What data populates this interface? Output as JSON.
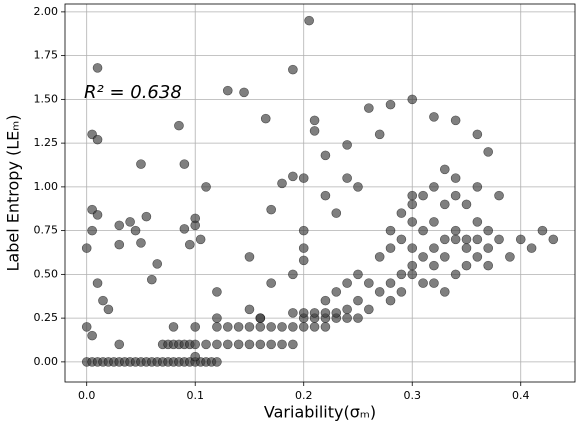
{
  "chart_data": {
    "type": "scatter",
    "xlabel": "Variability(σₘ)",
    "ylabel": "Label Entropy (LEₘ)",
    "annotation": "R² = 0.638",
    "color": "#3a3a3a",
    "grid": true,
    "xlim": [
      -0.02,
      0.45
    ],
    "ylim": [
      -0.115,
      2.045
    ],
    "xticks": [
      {
        "value": 0,
        "label": "0.0"
      },
      0.1,
      0.2,
      0.3,
      0.4
    ],
    "yticks": [
      {
        "value": 0,
        "label": "0.00"
      },
      0.25,
      {
        "value": 0.5,
        "label": "0.50"
      },
      0.75,
      {
        "value": 1,
        "label": "1.00"
      },
      1.25,
      {
        "value": 1.5,
        "label": "1.50"
      },
      1.75,
      {
        "value": 2,
        "label": "2.00"
      }
    ],
    "x": [
      0,
      0.005,
      0.01,
      0.015,
      0.02,
      0.025,
      0.03,
      0.035,
      0.04,
      0.045,
      0.05,
      0.055,
      0.06,
      0.065,
      0.07,
      0.075,
      0.08,
      0.085,
      0.09,
      0.095,
      0.1,
      0.105,
      0.11,
      0.115,
      0.12,
      0.03,
      0.07,
      0.075,
      0.08,
      0.085,
      0.09,
      0.095,
      0.1,
      0.11,
      0.12,
      0.13,
      0.14,
      0.15,
      0.16,
      0.17,
      0.18,
      0.19,
      0.08,
      0.1,
      0.12,
      0.13,
      0.14,
      0.15,
      0.16,
      0.17,
      0.18,
      0.19,
      0.2,
      0.21,
      0.22,
      0.12,
      0.16,
      0.2,
      0.21,
      0.22,
      0.23,
      0.24,
      0.25,
      0.19,
      0.2,
      0.21,
      0.22,
      0.23,
      0.24,
      0.25,
      0.26,
      0.27,
      0.28,
      0.29,
      0.3,
      0.3,
      0.31,
      0.31,
      0.32,
      0.32,
      0.33,
      0.33,
      0.34,
      0.34,
      0.35,
      0.35,
      0.36,
      0.36,
      0.37,
      0.37,
      0.38,
      0.39,
      0.4,
      0.41,
      0.42,
      0.43,
      0.26,
      0.28,
      0.29,
      0.3,
      0.31,
      0.32,
      0.33,
      0.34,
      0.3,
      0.31,
      0.32,
      0.3,
      0.29,
      0.28,
      0.27,
      0.32,
      0.33,
      0.34,
      0.35,
      0.36,
      0.37,
      0.25,
      0.23,
      0.22,
      0.24,
      0.35,
      0.36,
      0.34,
      0.33,
      0.3,
      0.29,
      0.28,
      0.01,
      0.005,
      0.01,
      0.005,
      0.01,
      0,
      0.005,
      0.01,
      0.015,
      0,
      0.005,
      0.02,
      0.03,
      0.03,
      0.04,
      0.045,
      0.05,
      0.05,
      0.055,
      0.06,
      0.065,
      0.085,
      0.09,
      0.09,
      0.095,
      0.1,
      0.1,
      0.105,
      0.11,
      0.12,
      0.13,
      0.145,
      0.15,
      0.15,
      0.165,
      0.17,
      0.18,
      0.19,
      0.19,
      0.2,
      0.205,
      0.2,
      0.2,
      0.19,
      0.21,
      0.21,
      0.22,
      0.22,
      0.23,
      0.24,
      0.24,
      0.25,
      0.26,
      0.27,
      0.28,
      0.3,
      0.32,
      0.34,
      0.36,
      0.37,
      0.38,
      0.17,
      0.16,
      0.1,
      0.2
    ],
    "y": [
      0,
      0,
      0,
      0,
      0,
      0,
      0,
      0,
      0,
      0,
      0,
      0,
      0,
      0,
      0,
      0,
      0,
      0,
      0,
      0,
      0,
      0,
      0,
      0,
      0,
      0.1,
      0.1,
      0.1,
      0.1,
      0.1,
      0.1,
      0.1,
      0.1,
      0.1,
      0.1,
      0.1,
      0.1,
      0.1,
      0.1,
      0.1,
      0.1,
      0.1,
      0.2,
      0.2,
      0.2,
      0.2,
      0.2,
      0.2,
      0.2,
      0.2,
      0.2,
      0.2,
      0.2,
      0.2,
      0.2,
      0.25,
      0.25,
      0.25,
      0.25,
      0.25,
      0.25,
      0.25,
      0.25,
      0.28,
      0.28,
      0.28,
      0.28,
      0.28,
      0.3,
      0.35,
      0.3,
      0.4,
      0.45,
      0.5,
      0.5,
      0.55,
      0.6,
      0.45,
      0.65,
      0.55,
      0.7,
      0.6,
      0.7,
      0.75,
      0.7,
      0.65,
      0.7,
      0.8,
      0.75,
      0.65,
      0.7,
      0.6,
      0.7,
      0.65,
      0.75,
      0.7,
      0.45,
      0.35,
      0.4,
      0.65,
      0.75,
      0.8,
      0.9,
      0.95,
      0.9,
      0.95,
      1.0,
      0.8,
      0.7,
      0.65,
      0.6,
      0.45,
      0.4,
      0.5,
      0.55,
      0.6,
      0.55,
      0.5,
      0.4,
      0.35,
      0.45,
      0.9,
      1.0,
      1.05,
      1.1,
      0.95,
      0.85,
      0.75,
      1.68,
      1.3,
      1.27,
      0.87,
      0.84,
      0.65,
      0.75,
      0.45,
      0.35,
      0.2,
      0.15,
      0.3,
      0.78,
      0.67,
      0.8,
      0.75,
      0.68,
      1.13,
      0.83,
      0.47,
      0.56,
      1.35,
      1.13,
      0.76,
      0.67,
      0.82,
      0.78,
      0.7,
      1.0,
      0.4,
      1.55,
      1.54,
      0.3,
      0.6,
      1.39,
      0.87,
      1.02,
      1.67,
      1.06,
      1.05,
      1.95,
      0.75,
      0.65,
      0.5,
      1.32,
      1.38,
      1.18,
      0.95,
      0.85,
      1.24,
      1.05,
      1.0,
      1.45,
      1.3,
      1.47,
      1.5,
      1.4,
      1.38,
      1.3,
      1.2,
      0.95,
      0.45,
      0.25,
      0.03,
      0.58
    ]
  }
}
